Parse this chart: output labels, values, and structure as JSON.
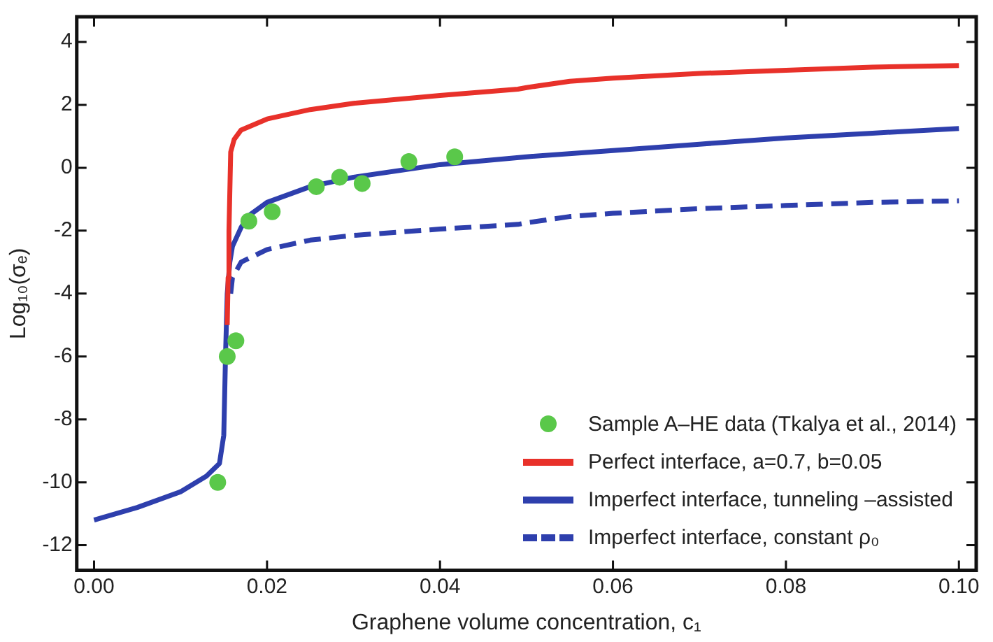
{
  "chart_data": {
    "type": "line",
    "xlabel": "Graphene volume concentration, c₁",
    "ylabel": "Log₁₀(σₑ)",
    "xlim": [
      -0.002,
      0.102
    ],
    "ylim": [
      -12.8,
      4.8
    ],
    "xticks": [
      {
        "value": 0,
        "label": "0.00"
      },
      {
        "value": 0.02,
        "label": "0.02"
      },
      {
        "value": 0.04,
        "label": "0.04"
      },
      {
        "value": 0.06,
        "label": "0.06"
      },
      {
        "value": 0.08,
        "label": "0.08"
      },
      {
        "value": 0.1,
        "label": "0.10"
      }
    ],
    "yticks": [
      -12,
      -10,
      -8,
      -6,
      -4,
      -2,
      0,
      2,
      4
    ],
    "grid": false,
    "legend": "bottom right",
    "series": [
      {
        "name": "Sample A–HE data (Tkalya et al., 2014)",
        "type": "scatter",
        "marker": "circle",
        "color": "#5ac84a",
        "x": [
          0.0143,
          0.0154,
          0.0164,
          0.0179,
          0.0206,
          0.0257,
          0.0284,
          0.031,
          0.0364,
          0.0417
        ],
        "values": [
          -10,
          -6,
          -5.5,
          -1.7,
          -1.4,
          -0.6,
          -0.3,
          -0.5,
          0.2,
          0.35
        ]
      },
      {
        "name": "Perfect interface, a=0.7, b=0.05",
        "line_style": "solid",
        "color": "#e8312a",
        "x": [
          0.0154,
          0.0155,
          0.0156,
          0.0158,
          0.0162,
          0.017,
          0.02,
          0.025,
          0.03,
          0.04,
          0.049,
          0.05,
          0.055,
          0.06,
          0.07,
          0.08,
          0.09,
          0.1
        ],
        "values": [
          -5,
          -3.5,
          -2,
          0.5,
          0.9,
          1.2,
          1.55,
          1.85,
          2.05,
          2.3,
          2.5,
          2.55,
          2.75,
          2.85,
          3.0,
          3.1,
          3.2,
          3.25
        ]
      },
      {
        "name": "Imperfect interface, tunneling –assisted",
        "line_style": "solid",
        "color": "#2e3fad",
        "x": [
          0,
          0.005,
          0.01,
          0.013,
          0.0145,
          0.015,
          0.0152,
          0.0154,
          0.0157,
          0.016,
          0.017,
          0.018,
          0.02,
          0.025,
          0.03,
          0.04,
          0.05,
          0.06,
          0.07,
          0.08,
          0.09,
          0.1
        ],
        "values": [
          -11.2,
          -10.8,
          -10.3,
          -9.8,
          -9.4,
          -8.5,
          -6,
          -4,
          -3,
          -2.5,
          -1.9,
          -1.5,
          -1.1,
          -0.6,
          -0.3,
          0.1,
          0.35,
          0.55,
          0.75,
          0.95,
          1.1,
          1.25
        ]
      },
      {
        "name": "Imperfect interface, constant ρ₀",
        "line_style": "dashed",
        "color": "#2e3fad",
        "x": [
          0.0158,
          0.016,
          0.017,
          0.02,
          0.025,
          0.03,
          0.04,
          0.049,
          0.05,
          0.055,
          0.06,
          0.07,
          0.08,
          0.09,
          0.1
        ],
        "values": [
          -4,
          -3.5,
          -3.0,
          -2.6,
          -2.3,
          -2.15,
          -1.95,
          -1.8,
          -1.75,
          -1.55,
          -1.45,
          -1.3,
          -1.2,
          -1.1,
          -1.05
        ]
      }
    ]
  }
}
